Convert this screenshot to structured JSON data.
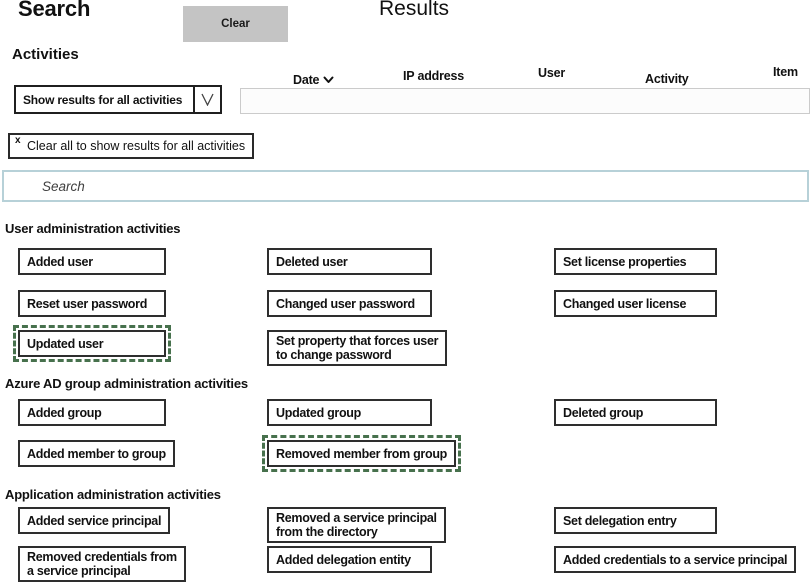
{
  "header": {
    "search_title": "Search",
    "clear_label": "Clear",
    "results_title": "Results"
  },
  "filters": {
    "activities_label": "Activities",
    "activity_dropdown": {
      "value": "Show results for all activities",
      "icon": "chevron-down"
    },
    "clear_all_chip": {
      "close_label": "x",
      "label": "Clear all to show results for all activities"
    },
    "search": {
      "placeholder": "Search"
    }
  },
  "results_table": {
    "columns": [
      {
        "label": "Date",
        "sort_icon": "chevron-down",
        "sortable": true
      },
      {
        "label": "IP address"
      },
      {
        "label": "User"
      },
      {
        "label": "Activity"
      },
      {
        "label": "Item"
      }
    ]
  },
  "activity_sections": [
    {
      "heading": "User administration activities",
      "buttons": [
        {
          "label": "Added user"
        },
        {
          "label": "Deleted user"
        },
        {
          "label": "Set license properties"
        },
        {
          "label": "Reset user password"
        },
        {
          "label": "Changed user password"
        },
        {
          "label": "Changed user license"
        },
        {
          "label": "Updated user",
          "selected": true
        },
        {
          "label": "Set property that forces user\nto change password"
        }
      ]
    },
    {
      "heading": "Azure AD group administration activities",
      "buttons": [
        {
          "label": "Added group"
        },
        {
          "label": "Updated group"
        },
        {
          "label": "Deleted group"
        },
        {
          "label": "Added member to group"
        },
        {
          "label": "Removed member from group",
          "selected": true
        }
      ]
    },
    {
      "heading": "Application administration activities",
      "buttons": [
        {
          "label": "Added service principal"
        },
        {
          "label": "Removed a service principal\nfrom the directory"
        },
        {
          "label": "Set delegation entry"
        },
        {
          "label": "Removed credentials from\na service principal"
        },
        {
          "label": "Added delegation entity"
        },
        {
          "label": "Added credentials to a service principal",
          "wide": true
        }
      ]
    }
  ],
  "colors": {
    "clear_button_bg": "#c4c4c4",
    "button_border": "#2e2e2e",
    "selected_outline": "#47714d",
    "search_border": "#b7d1d8",
    "table_row_border": "#cbcbcb",
    "text": "#111111"
  }
}
